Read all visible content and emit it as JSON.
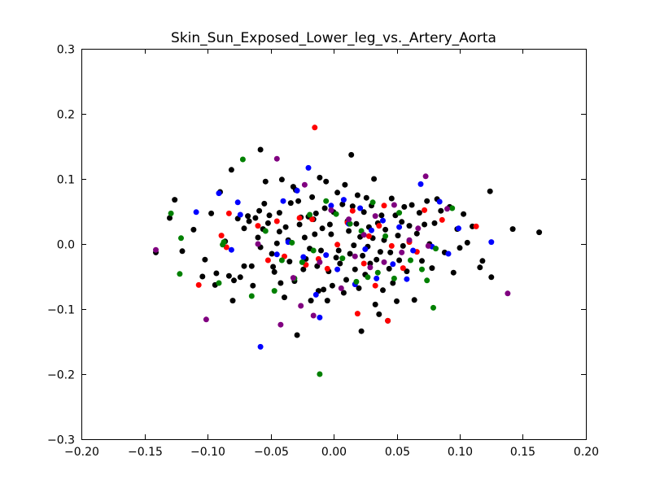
{
  "chart_data": {
    "type": "scatter",
    "title": "Skin_Sun_Exposed_Lower_leg_vs._Artery_Aorta",
    "xlabel": "",
    "ylabel": "",
    "xlim": [
      -0.2,
      0.2
    ],
    "ylim": [
      -0.3,
      0.3
    ],
    "x_ticks": [
      -0.2,
      -0.15,
      -0.1,
      -0.05,
      0.0,
      0.05,
      0.1,
      0.15,
      0.2
    ],
    "x_tick_labels": [
      "−0.20",
      "−0.15",
      "−0.10",
      "−0.05",
      "0.00",
      "0.05",
      "0.10",
      "0.15",
      "0.20"
    ],
    "y_ticks": [
      -0.3,
      -0.2,
      -0.1,
      0.0,
      0.1,
      0.2,
      0.3
    ],
    "y_tick_labels": [
      "−0.3",
      "−0.2",
      "−0.1",
      "0.0",
      "0.1",
      "0.2",
      "0.3"
    ],
    "grid": false,
    "legend": "none",
    "colors": {
      "black": "#000000",
      "red": "#ff0000",
      "blue": "#0000ff",
      "green": "#008000",
      "purple": "#800080"
    },
    "series": [
      {
        "color": "black",
        "points": [
          [
            -0.141,
            -0.013
          ],
          [
            -0.13,
            0.04
          ],
          [
            -0.126,
            0.068
          ],
          [
            -0.12,
            -0.011
          ],
          [
            -0.111,
            0.022
          ],
          [
            -0.104,
            -0.05
          ],
          [
            -0.102,
            -0.024
          ],
          [
            -0.097,
            0.047
          ],
          [
            -0.094,
            -0.063
          ],
          [
            -0.093,
            -0.045
          ],
          [
            -0.09,
            0.08
          ],
          [
            -0.086,
            0.004
          ],
          [
            -0.083,
            -0.049
          ],
          [
            -0.081,
            0.114
          ],
          [
            -0.08,
            -0.087
          ],
          [
            -0.079,
            -0.056
          ],
          [
            -0.076,
            0.039
          ],
          [
            -0.074,
            -0.051
          ],
          [
            -0.071,
            -0.034
          ],
          [
            -0.071,
            0.024
          ],
          [
            -0.068,
            0.043
          ],
          [
            -0.067,
            0.035
          ],
          [
            -0.065,
            -0.034
          ],
          [
            -0.064,
            -0.064
          ],
          [
            -0.062,
            0.04
          ],
          [
            -0.06,
            0.01
          ],
          [
            -0.059,
            0.051
          ],
          [
            -0.058,
            0.145
          ],
          [
            -0.058,
            -0.005
          ],
          [
            -0.056,
            0.023
          ],
          [
            -0.055,
            0.062
          ],
          [
            -0.054,
            0.096
          ],
          [
            -0.052,
            0.032
          ],
          [
            -0.051,
            0.044
          ],
          [
            -0.049,
            -0.015
          ],
          [
            -0.048,
            -0.035
          ],
          [
            -0.047,
            -0.043
          ],
          [
            -0.045,
            0.001
          ],
          [
            -0.043,
            0.019
          ],
          [
            -0.043,
            0.048
          ],
          [
            -0.042,
            -0.06
          ],
          [
            -0.041,
            0.099
          ],
          [
            -0.039,
            -0.082
          ],
          [
            -0.038,
            0.026
          ],
          [
            -0.036,
            0.006
          ],
          [
            -0.035,
            -0.027
          ],
          [
            -0.034,
            0.063
          ],
          [
            -0.032,
            0.088
          ],
          [
            -0.031,
            -0.057
          ],
          [
            -0.03,
            0.083
          ],
          [
            -0.029,
            -0.14
          ],
          [
            -0.028,
            0.066
          ],
          [
            -0.027,
            0.03
          ],
          [
            -0.026,
            0.041
          ],
          [
            -0.024,
            -0.039
          ],
          [
            -0.023,
            0.01
          ],
          [
            -0.022,
            -0.023
          ],
          [
            -0.02,
            0.042
          ],
          [
            -0.019,
            -0.007
          ],
          [
            -0.018,
            -0.087
          ],
          [
            -0.017,
            0.072
          ],
          [
            -0.016,
            0.038
          ],
          [
            -0.015,
            0.015
          ],
          [
            -0.014,
            0.047
          ],
          [
            -0.013,
            -0.034
          ],
          [
            -0.012,
            -0.072
          ],
          [
            -0.011,
            0.102
          ],
          [
            -0.01,
            -0.01
          ],
          [
            -0.009,
            0.024
          ],
          [
            -0.008,
            -0.07
          ],
          [
            -0.007,
            0.055
          ],
          [
            -0.006,
            0.096
          ],
          [
            -0.005,
            -0.087
          ],
          [
            -0.004,
            -0.042
          ],
          [
            -0.003,
            0.03
          ],
          [
            -0.002,
            0.015
          ],
          [
            -0.001,
            -0.064
          ],
          [
            0.0,
            0.049
          ],
          [
            0.002,
            -0.021
          ],
          [
            0.003,
            0.079
          ],
          [
            0.004,
            -0.01
          ],
          [
            0.005,
            -0.03
          ],
          [
            0.007,
            0.061
          ],
          [
            0.008,
            -0.075
          ],
          [
            0.009,
            0.091
          ],
          [
            0.01,
            -0.055
          ],
          [
            0.011,
            0.035
          ],
          [
            0.012,
            0.02
          ],
          [
            0.013,
            -0.015
          ],
          [
            0.014,
            0.137
          ],
          [
            0.015,
            0.058
          ],
          [
            0.016,
            -0.002
          ],
          [
            0.017,
            -0.039
          ],
          [
            0.018,
            0.031
          ],
          [
            0.019,
            0.075
          ],
          [
            0.02,
            -0.068
          ],
          [
            0.021,
            0.011
          ],
          [
            0.022,
            -0.134
          ],
          [
            0.023,
            -0.018
          ],
          [
            0.024,
            0.049
          ],
          [
            0.025,
            -0.047
          ],
          [
            0.026,
            0.071
          ],
          [
            0.027,
            -0.004
          ],
          [
            0.028,
            0.026
          ],
          [
            0.029,
            -0.03
          ],
          [
            0.03,
            0.059
          ],
          [
            0.031,
            0.009
          ],
          [
            0.032,
            0.1
          ],
          [
            0.033,
            -0.093
          ],
          [
            0.034,
            -0.024
          ],
          [
            0.035,
            0.032
          ],
          [
            0.036,
            -0.108
          ],
          [
            0.037,
            -0.012
          ],
          [
            0.038,
            0.044
          ],
          [
            0.039,
            -0.071
          ],
          [
            0.04,
            0.006
          ],
          [
            0.041,
            0.022
          ],
          [
            0.043,
            -0.118
          ],
          [
            0.044,
            -0.038
          ],
          [
            0.045,
            -0.013
          ],
          [
            0.046,
            0.07
          ],
          [
            0.047,
            -0.06
          ],
          [
            0.049,
            0.044
          ],
          [
            0.05,
            -0.088
          ],
          [
            0.051,
            0.013
          ],
          [
            0.052,
            -0.025
          ],
          [
            0.054,
            0.034
          ],
          [
            0.055,
            -0.003
          ],
          [
            0.056,
            0.057
          ],
          [
            0.058,
            -0.042
          ],
          [
            0.06,
            0.028
          ],
          [
            0.062,
            0.06
          ],
          [
            0.064,
            -0.086
          ],
          [
            0.066,
            0.016
          ],
          [
            0.068,
            0.048
          ],
          [
            0.07,
            -0.026
          ],
          [
            0.072,
            0.03
          ],
          [
            0.074,
            0.066
          ],
          [
            0.076,
            0.0
          ],
          [
            0.078,
            -0.037
          ],
          [
            0.08,
            0.032
          ],
          [
            0.082,
            0.069
          ],
          [
            0.085,
            0.051
          ],
          [
            0.088,
            -0.013
          ],
          [
            0.092,
            0.057
          ],
          [
            0.095,
            -0.044
          ],
          [
            0.098,
            0.023
          ],
          [
            0.1,
            -0.006
          ],
          [
            0.103,
            0.046
          ],
          [
            0.106,
            0.002
          ],
          [
            0.11,
            0.027
          ],
          [
            0.116,
            -0.036
          ],
          [
            0.118,
            -0.026
          ],
          [
            0.124,
            0.081
          ],
          [
            0.125,
            -0.051
          ],
          [
            0.142,
            0.023
          ],
          [
            0.163,
            0.018
          ]
        ]
      },
      {
        "color": "red",
        "points": [
          [
            -0.107,
            -0.063
          ],
          [
            -0.089,
            0.013
          ],
          [
            -0.085,
            -0.005
          ],
          [
            -0.083,
            0.047
          ],
          [
            -0.06,
            0.028
          ],
          [
            -0.052,
            -0.025
          ],
          [
            -0.045,
            0.035
          ],
          [
            -0.039,
            -0.019
          ],
          [
            -0.027,
            0.04
          ],
          [
            -0.022,
            -0.032
          ],
          [
            -0.017,
            0.038
          ],
          [
            -0.015,
            0.179
          ],
          [
            -0.012,
            -0.023
          ],
          [
            -0.005,
            -0.038
          ],
          [
            0.003,
            -0.001
          ],
          [
            0.011,
            0.033
          ],
          [
            0.015,
            0.051
          ],
          [
            0.019,
            -0.107
          ],
          [
            0.024,
            -0.03
          ],
          [
            0.028,
            0.012
          ],
          [
            0.033,
            -0.064
          ],
          [
            0.036,
            0.028
          ],
          [
            0.04,
            0.059
          ],
          [
            0.043,
            -0.118
          ],
          [
            0.046,
            -0.003
          ],
          [
            0.055,
            -0.037
          ],
          [
            0.06,
            0.003
          ],
          [
            0.066,
            -0.012
          ],
          [
            0.072,
            0.052
          ],
          [
            0.086,
            0.037
          ],
          [
            0.113,
            0.027
          ]
        ]
      },
      {
        "color": "blue",
        "points": [
          [
            -0.109,
            0.049
          ],
          [
            -0.091,
            0.078
          ],
          [
            -0.081,
            -0.009
          ],
          [
            -0.076,
            0.064
          ],
          [
            -0.074,
            0.045
          ],
          [
            -0.058,
            -0.158
          ],
          [
            -0.045,
            -0.016
          ],
          [
            -0.04,
            0.066
          ],
          [
            -0.036,
            0.003
          ],
          [
            -0.029,
            0.082
          ],
          [
            -0.024,
            -0.02
          ],
          [
            -0.02,
            0.117
          ],
          [
            -0.014,
            -0.078
          ],
          [
            -0.011,
            -0.113
          ],
          [
            -0.006,
            -0.017
          ],
          [
            -0.002,
            0.059
          ],
          [
            0.003,
            -0.039
          ],
          [
            0.008,
            0.068
          ],
          [
            0.012,
            0.031
          ],
          [
            0.017,
            -0.062
          ],
          [
            0.021,
            0.055
          ],
          [
            0.025,
            -0.008
          ],
          [
            0.03,
            0.021
          ],
          [
            0.034,
            -0.053
          ],
          [
            0.039,
            0.036
          ],
          [
            0.047,
            -0.031
          ],
          [
            0.052,
            0.026
          ],
          [
            0.058,
            -0.054
          ],
          [
            0.063,
            -0.01
          ],
          [
            0.069,
            0.092
          ],
          [
            0.078,
            -0.004
          ],
          [
            0.084,
            0.065
          ],
          [
            0.091,
            -0.015
          ],
          [
            0.099,
            0.024
          ],
          [
            0.125,
            0.003
          ]
        ]
      },
      {
        "color": "green",
        "points": [
          [
            -0.129,
            0.047
          ],
          [
            -0.122,
            -0.046
          ],
          [
            -0.121,
            0.009
          ],
          [
            -0.091,
            -0.06
          ],
          [
            -0.088,
            -0.001
          ],
          [
            -0.087,
            0.003
          ],
          [
            -0.072,
            0.13
          ],
          [
            -0.065,
            -0.08
          ],
          [
            -0.054,
            0.02
          ],
          [
            -0.047,
            -0.072
          ],
          [
            -0.041,
            -0.025
          ],
          [
            -0.033,
            0.002
          ],
          [
            -0.031,
            -0.053
          ],
          [
            -0.025,
            -0.028
          ],
          [
            -0.019,
            0.045
          ],
          [
            -0.016,
            -0.01
          ],
          [
            -0.011,
            -0.2
          ],
          [
            -0.006,
            0.066
          ],
          [
            0.002,
            0.046
          ],
          [
            0.007,
            -0.022
          ],
          [
            0.013,
            0.031
          ],
          [
            0.018,
            -0.058
          ],
          [
            0.022,
            0.02
          ],
          [
            0.027,
            -0.051
          ],
          [
            0.031,
            0.064
          ],
          [
            0.035,
            -0.044
          ],
          [
            0.041,
            0.012
          ],
          [
            0.048,
            -0.053
          ],
          [
            0.052,
            0.048
          ],
          [
            0.061,
            -0.025
          ],
          [
            0.07,
            -0.039
          ],
          [
            0.074,
            -0.056
          ],
          [
            0.079,
            -0.098
          ],
          [
            0.081,
            -0.007
          ],
          [
            0.094,
            0.055
          ]
        ]
      },
      {
        "color": "purple",
        "points": [
          [
            -0.141,
            -0.009
          ],
          [
            -0.101,
            -0.116
          ],
          [
            -0.06,
            0.0
          ],
          [
            -0.045,
            0.131
          ],
          [
            -0.042,
            -0.124
          ],
          [
            -0.032,
            -0.052
          ],
          [
            -0.026,
            -0.095
          ],
          [
            -0.023,
            0.091
          ],
          [
            -0.016,
            -0.11
          ],
          [
            -0.011,
            -0.028
          ],
          [
            -0.002,
            0.052
          ],
          [
            0.006,
            -0.068
          ],
          [
            0.012,
            0.038
          ],
          [
            0.017,
            -0.019
          ],
          [
            0.024,
            0.014
          ],
          [
            0.029,
            -0.036
          ],
          [
            0.033,
            0.043
          ],
          [
            0.04,
            -0.028
          ],
          [
            0.048,
            0.06
          ],
          [
            0.054,
            -0.013
          ],
          [
            0.06,
            0.006
          ],
          [
            0.067,
            0.024
          ],
          [
            0.073,
            0.104
          ],
          [
            0.075,
            -0.003
          ],
          [
            0.09,
            0.054
          ],
          [
            0.138,
            -0.076
          ]
        ]
      }
    ]
  }
}
